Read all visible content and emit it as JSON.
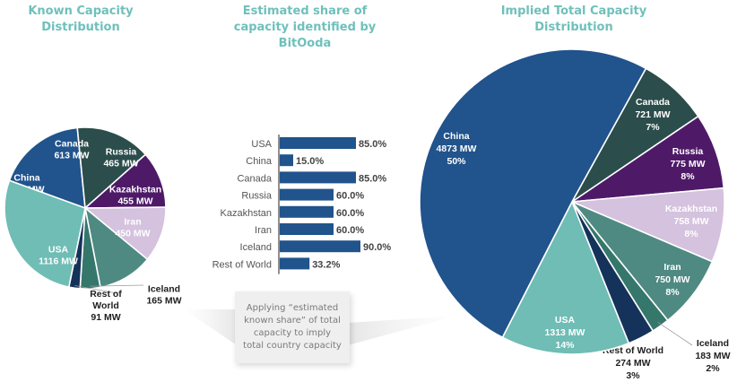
{
  "chart_data": [
    {
      "type": "pie",
      "title": "Known Capacity Distribution",
      "unit": "MW",
      "slices": [
        {
          "label": "China",
          "value": 731,
          "value_label": "731 MW",
          "color": "#21538c"
        },
        {
          "label": "Canada",
          "value": 613,
          "value_label": "613 MW",
          "color": "#2b4d4b"
        },
        {
          "label": "Russia",
          "value": 465,
          "value_label": "465 MW",
          "color": "#4e1a68"
        },
        {
          "label": "Kazakhstan",
          "value": 455,
          "value_label": "455 MW",
          "color": "#d4c2de"
        },
        {
          "label": "Iran",
          "value": 450,
          "value_label": "450 MW",
          "color": "#4e8a82"
        },
        {
          "label": "Iceland",
          "value": 165,
          "value_label": "165 MW",
          "color": "#36776c"
        },
        {
          "label": "Rest of World",
          "value": 91,
          "value_label": "91 MW",
          "color": "#15325a"
        },
        {
          "label": "USA",
          "value": 1116,
          "value_label": "1116 MW",
          "color": "#6fbdb5"
        }
      ]
    },
    {
      "type": "bar",
      "orientation": "horizontal",
      "title": "Estimated share of capacity identified by BitOoda",
      "categories": [
        "USA",
        "China",
        "Canada",
        "Russia",
        "Kazakhstan",
        "Iran",
        "Iceland",
        "Rest of World"
      ],
      "values": [
        85.0,
        15.0,
        85.0,
        60.0,
        60.0,
        60.0,
        90.0,
        33.2
      ],
      "value_labels": [
        "85.0%",
        "15.0%",
        "85.0%",
        "60.0%",
        "60.0%",
        "60.0%",
        "90.0%",
        "33.2%"
      ],
      "xlim": [
        0,
        100
      ],
      "color": "#21538c"
    },
    {
      "type": "pie",
      "title": "Implied Total Capacity Distribution",
      "unit": "MW",
      "slices": [
        {
          "label": "Canada",
          "value": 721,
          "value_label": "721 MW",
          "pct": "7%",
          "color": "#2b4d4b"
        },
        {
          "label": "Russia",
          "value": 775,
          "value_label": "775 MW",
          "pct": "8%",
          "color": "#4e1a68"
        },
        {
          "label": "Kazakhstan",
          "value": 758,
          "value_label": "758 MW",
          "pct": "8%",
          "color": "#d4c2de"
        },
        {
          "label": "Iran",
          "value": 750,
          "value_label": "750 MW",
          "pct": "8%",
          "color": "#4e8a82"
        },
        {
          "label": "Iceland",
          "value": 183,
          "value_label": "183 MW",
          "pct": "2%",
          "color": "#36776c"
        },
        {
          "label": "Rest of World",
          "value": 274,
          "value_label": "274 MW",
          "pct": "3%",
          "color": "#15325a"
        },
        {
          "label": "USA",
          "value": 1313,
          "value_label": "1313 MW",
          "pct": "14%",
          "color": "#6fbdb5"
        },
        {
          "label": "China",
          "value": 4873,
          "value_label": "4873 MW",
          "pct": "50%",
          "color": "#21538c"
        }
      ]
    }
  ],
  "titles": {
    "left": [
      "Known Capacity",
      "Distribution"
    ],
    "middle": [
      "Estimated share of",
      "capacity identified by",
      "BitOoda"
    ],
    "right": [
      "Implied Total Capacity",
      "Distribution"
    ]
  },
  "callout": {
    "text": "Applying “estimated known share” of total capacity to imply total country capacity"
  },
  "colors": {
    "title": "#6fc0bb",
    "callout_bg": "#efefef"
  }
}
